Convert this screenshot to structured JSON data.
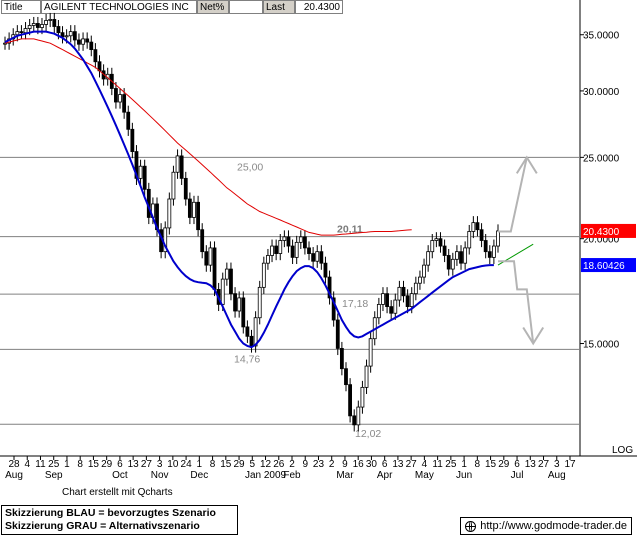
{
  "header": {
    "title_label": "Title",
    "title_value": "AGILENT TECHNOLOGIES INC",
    "change_label": "Net%",
    "last_label": "Last",
    "last_value": "20.4300"
  },
  "footer": {
    "note": "Chart erstellt mit Qcharts",
    "legend_blue": "Skizzierung BLAU = bevorzugtes Szenario",
    "legend_grey": "Skizzierung GRAU = Alternativszenario",
    "url": "http://www.godmode-trader.de"
  },
  "colors": {
    "candle": "#000000",
    "ma_short": "#0000cc",
    "ma_long": "#e00000",
    "level_line": "#808080",
    "scenario_blue": "#1e3fff",
    "scenario_grey": "#b4b4b4",
    "trend_green": "#009900",
    "price_tag": "#ff0000",
    "ma_tag": "#0000ff"
  },
  "chart_data": {
    "type": "candlestick",
    "y_scale": "log",
    "ylim": [
      11.2,
      38.5
    ],
    "y_ticks": [
      15,
      20,
      25,
      30,
      35
    ],
    "y_tick_labels": [
      "15.0000",
      "20.0000",
      "25.0000",
      "30.0000",
      "35.0000"
    ],
    "scale_label": "LOG",
    "x_ticks": [
      {
        "day": "28",
        "month": "Aug"
      },
      {
        "day": "4",
        "month": ""
      },
      {
        "day": "11",
        "month": ""
      },
      {
        "day": "25",
        "month": "Sep"
      },
      {
        "day": "1",
        "month": ""
      },
      {
        "day": "8",
        "month": ""
      },
      {
        "day": "15",
        "month": ""
      },
      {
        "day": "29",
        "month": ""
      },
      {
        "day": "6",
        "month": "Oct"
      },
      {
        "day": "13",
        "month": ""
      },
      {
        "day": "27",
        "month": ""
      },
      {
        "day": "3",
        "month": "Nov"
      },
      {
        "day": "10",
        "month": ""
      },
      {
        "day": "24",
        "month": ""
      },
      {
        "day": "1",
        "month": "Dec"
      },
      {
        "day": "8",
        "month": ""
      },
      {
        "day": "15",
        "month": ""
      },
      {
        "day": "29",
        "month": ""
      },
      {
        "day": "5",
        "month": ""
      },
      {
        "day": "12",
        "month": "Jan 2009"
      },
      {
        "day": "26",
        "month": ""
      },
      {
        "day": "2",
        "month": "Feb"
      },
      {
        "day": "9",
        "month": ""
      },
      {
        "day": "23",
        "month": ""
      },
      {
        "day": "2",
        "month": ""
      },
      {
        "day": "9",
        "month": "Mar"
      },
      {
        "day": "16",
        "month": ""
      },
      {
        "day": "30",
        "month": ""
      },
      {
        "day": "6",
        "month": "Apr"
      },
      {
        "day": "13",
        "month": ""
      },
      {
        "day": "27",
        "month": ""
      },
      {
        "day": "4",
        "month": "May"
      },
      {
        "day": "11",
        "month": ""
      },
      {
        "day": "25",
        "month": ""
      },
      {
        "day": "1",
        "month": "Jun"
      },
      {
        "day": "8",
        "month": ""
      },
      {
        "day": "15",
        "month": ""
      },
      {
        "day": "29",
        "month": ""
      },
      {
        "day": "6",
        "month": "Jul"
      },
      {
        "day": "13",
        "month": ""
      },
      {
        "day": "27",
        "month": ""
      },
      {
        "day": "3",
        "month": "Aug"
      },
      {
        "day": "17",
        "month": ""
      }
    ],
    "levels": [
      {
        "value": 25.0,
        "label": "25,00"
      },
      {
        "value": 20.11,
        "label": "20,11"
      },
      {
        "value": 17.18,
        "label": "17,18"
      },
      {
        "value": 14.76,
        "label": "14,76"
      },
      {
        "value": 12.02,
        "label": "12,02"
      }
    ],
    "price_tags": [
      {
        "value": 20.43,
        "label": "20.4300"
      },
      {
        "value": 18.60426,
        "label": "18.60426"
      }
    ],
    "scenario_blue": [
      [
        0,
        18.6
      ],
      [
        22,
        19.7
      ]
    ],
    "scenario_grey_up": [
      [
        0,
        20.4
      ],
      [
        8,
        20.4
      ],
      [
        18,
        25.0
      ]
    ],
    "scenario_grey_down": [
      [
        0,
        18.8
      ],
      [
        10,
        18.8
      ],
      [
        12,
        17.4
      ],
      [
        18,
        17.4
      ],
      [
        22,
        15.0
      ]
    ],
    "series": [
      {
        "name": "",
        "kind": "close",
        "values": [
          34.2,
          34.6,
          35.0,
          35.3,
          35.2,
          35.6,
          35.9,
          36.1,
          35.7,
          36.0,
          36.4,
          36.5,
          35.8,
          35.2,
          34.8,
          34.9,
          35.3,
          34.5,
          34.1,
          34.6,
          34.3,
          33.6,
          32.5,
          31.7,
          31.0,
          31.4,
          30.2,
          29.1,
          29.7,
          28.3,
          27.0,
          25.4,
          23.6,
          24.4,
          22.9,
          21.2,
          22.0,
          20.5,
          19.3,
          20.6,
          22.3,
          24.0,
          25.1,
          23.6,
          22.3,
          21.2,
          22.1,
          20.5,
          19.3,
          18.6,
          19.5,
          17.4,
          16.7,
          17.9,
          18.4,
          17.2,
          16.4,
          17.0,
          15.7,
          15.3,
          14.9,
          16.1,
          17.5,
          18.7,
          19.1,
          19.6,
          19.2,
          19.9,
          20.1,
          19.6,
          19.0,
          19.8,
          20.1,
          19.5,
          19.2,
          18.8,
          19.3,
          18.7,
          18.0,
          17.0,
          16.0,
          14.8,
          14.0,
          13.4,
          12.3,
          12.0,
          12.6,
          13.3,
          14.1,
          15.2,
          16.1,
          16.7,
          17.2,
          16.6,
          16.3,
          16.9,
          17.5,
          17.1,
          16.6,
          17.2,
          17.7,
          18.0,
          18.6,
          19.3,
          19.9,
          20.0,
          19.6,
          19.1,
          18.4,
          18.9,
          19.3,
          18.7,
          19.5,
          20.4,
          20.9,
          20.5,
          19.9,
          19.3,
          19.0,
          19.6,
          20.43
        ]
      },
      {
        "name": "",
        "kind": "ma_short",
        "values": [
          34.3,
          34.5,
          34.7,
          34.9,
          35.0,
          35.1,
          35.2,
          35.3,
          35.3,
          35.3,
          35.3,
          35.2,
          35.1,
          34.9,
          34.7,
          34.4,
          34.1,
          33.7,
          33.2,
          32.7,
          32.1,
          31.5,
          30.8,
          30.1,
          29.4,
          28.7,
          28.0,
          27.3,
          26.6,
          25.9,
          25.2,
          24.5,
          23.8,
          23.1,
          22.4,
          21.8,
          21.2,
          20.6,
          20.1,
          19.6,
          19.2,
          18.8,
          18.5,
          18.25,
          18.05,
          17.9,
          17.8,
          17.75,
          17.72,
          17.7,
          17.6,
          17.4,
          17.0,
          16.6,
          16.2,
          15.8,
          15.5,
          15.2,
          15.0,
          14.9,
          14.85,
          14.95,
          15.15,
          15.45,
          15.8,
          16.2,
          16.6,
          17.0,
          17.4,
          17.75,
          18.05,
          18.3,
          18.45,
          18.55,
          18.55,
          18.45,
          18.25,
          17.95,
          17.6,
          17.2,
          16.8,
          16.4,
          16.0,
          15.7,
          15.45,
          15.3,
          15.25,
          15.3,
          15.4,
          15.5,
          15.6,
          15.7,
          15.8,
          15.9,
          16.0,
          16.1,
          16.2,
          16.3,
          16.4,
          16.5,
          16.65,
          16.8,
          16.95,
          17.1,
          17.25,
          17.4,
          17.55,
          17.7,
          17.85,
          18.0,
          18.1,
          18.2,
          18.3,
          18.4,
          18.45,
          18.5,
          18.55,
          18.58,
          18.6,
          18.6
        ]
      },
      {
        "name": "",
        "kind": "ma_long",
        "values": [
          34.2,
          34.3,
          34.4,
          34.5,
          34.6,
          34.6,
          34.6,
          34.6,
          34.5,
          34.4,
          34.3,
          34.2,
          34.0,
          33.8,
          33.6,
          33.4,
          33.2,
          33.0,
          32.8,
          32.6,
          32.4,
          32.2,
          32.0,
          31.7,
          31.4,
          31.1,
          30.8,
          30.5,
          30.2,
          29.9,
          29.6,
          29.3,
          29.0,
          28.7,
          28.4,
          28.1,
          27.8,
          27.5,
          27.2,
          26.9,
          26.6,
          26.3,
          26.0,
          25.75,
          25.5,
          25.25,
          25.0,
          24.75,
          24.5,
          24.25,
          24.0,
          23.75,
          23.5,
          23.25,
          23.0,
          22.8,
          22.6,
          22.4,
          22.2,
          22.0,
          21.85,
          21.7,
          21.55,
          21.45,
          21.35,
          21.25,
          21.15,
          21.05,
          20.95,
          20.85,
          20.75,
          20.65,
          20.55,
          20.45,
          20.35,
          20.3,
          20.25,
          20.2,
          20.2,
          20.2,
          20.2,
          20.22,
          20.24,
          20.26,
          20.28,
          20.3,
          20.32,
          20.34,
          20.36,
          20.38,
          20.4,
          20.4,
          20.4,
          20.4,
          20.4,
          20.42,
          20.44,
          20.46,
          20.48,
          20.5
        ]
      }
    ]
  }
}
